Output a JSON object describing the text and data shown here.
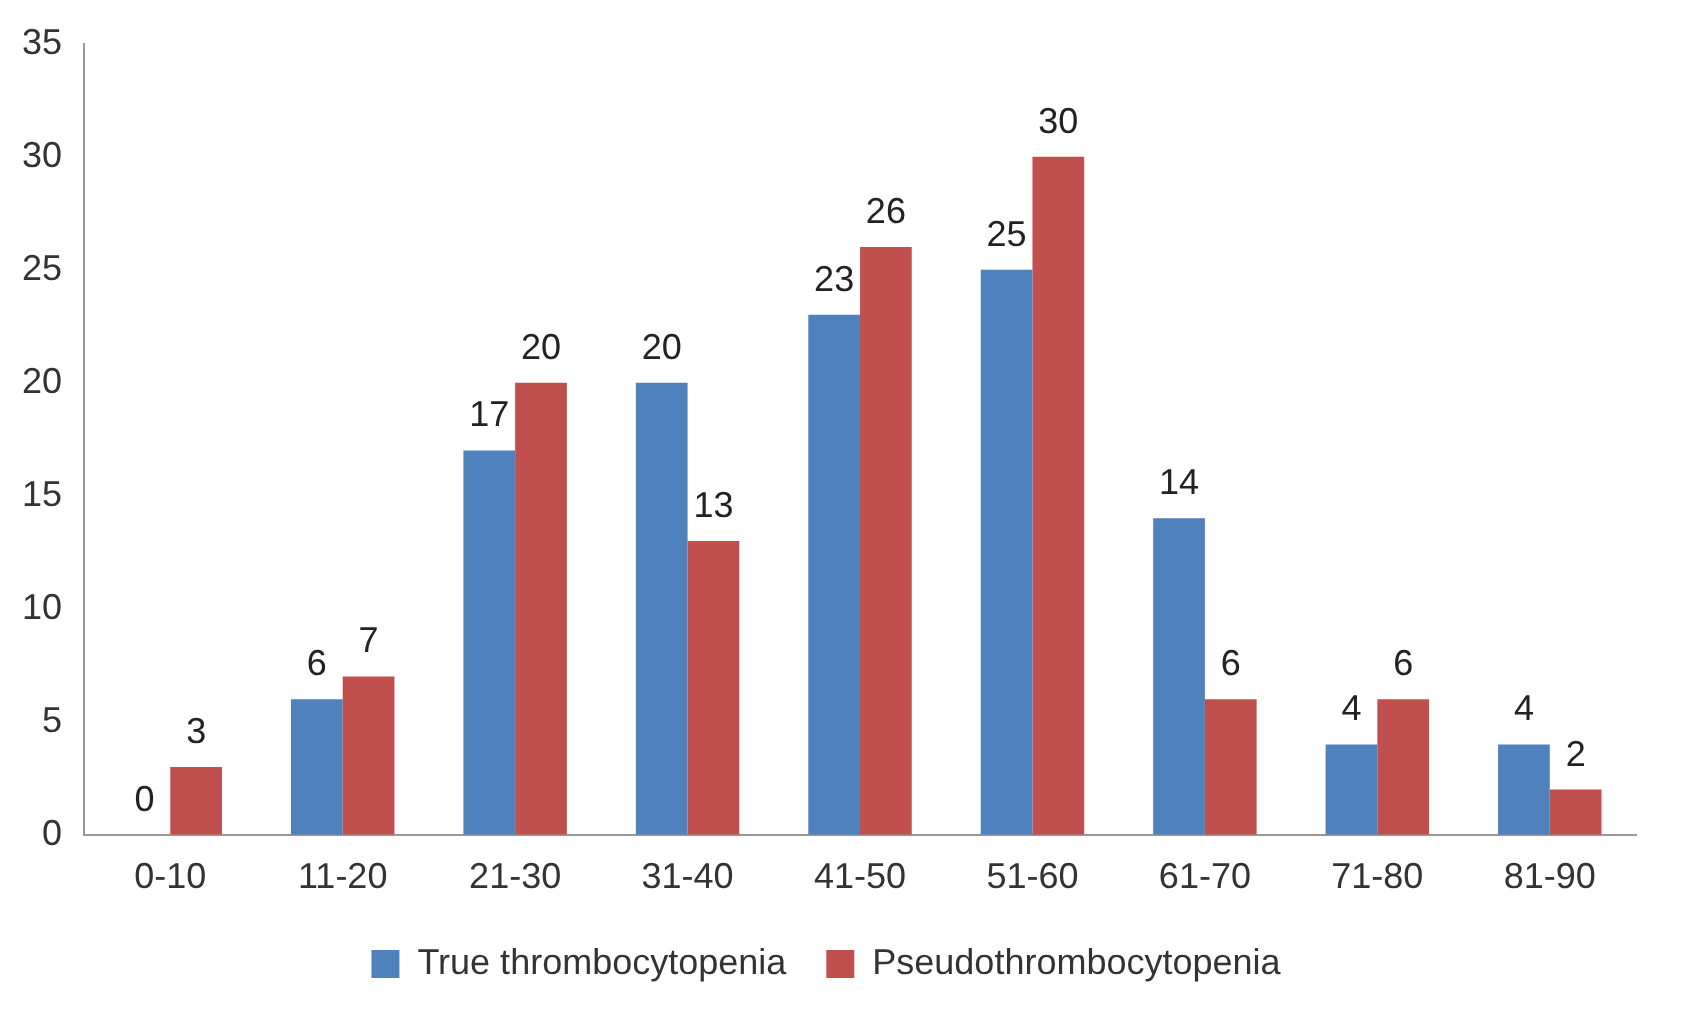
{
  "chart_data": {
    "type": "bar",
    "categories": [
      "0-10",
      "11-20",
      "21-30",
      "31-40",
      "41-50",
      "51-60",
      "61-70",
      "71-80",
      "81-90"
    ],
    "series": [
      {
        "name": "True thrombocytopenia",
        "color": "#4f81bd",
        "values": [
          0,
          6,
          17,
          20,
          23,
          25,
          14,
          4,
          4
        ]
      },
      {
        "name": "Pseudothrombocytopenia",
        "color": "#c0504d",
        "values": [
          3,
          7,
          20,
          13,
          26,
          30,
          6,
          6,
          2
        ]
      }
    ],
    "ylim": [
      0,
      35
    ],
    "yticks": [
      0,
      5,
      10,
      15,
      20,
      25,
      30,
      35
    ],
    "grid": false,
    "legend": "bottom",
    "data_labels": true
  }
}
